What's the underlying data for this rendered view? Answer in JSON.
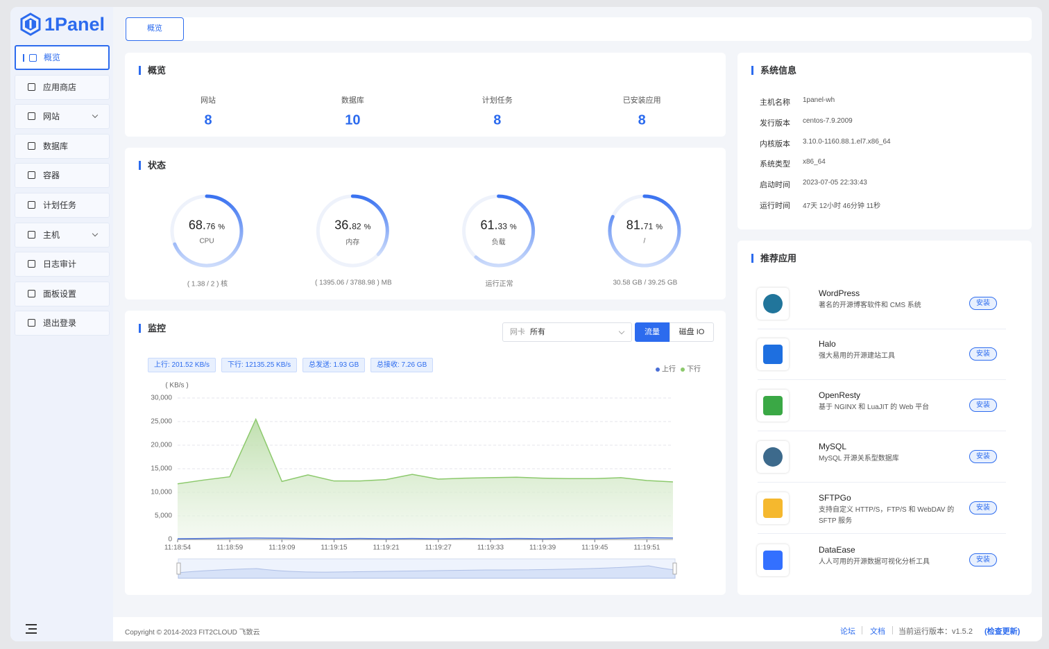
{
  "brand": "1Panel",
  "menu": [
    {
      "label": "概览",
      "active": true
    },
    {
      "label": "应用商店"
    },
    {
      "label": "网站",
      "submenu": true
    },
    {
      "label": "数据库"
    },
    {
      "label": "容器"
    },
    {
      "label": "计划任务"
    },
    {
      "label": "主机",
      "submenu": true
    },
    {
      "label": "日志审计"
    },
    {
      "label": "面板设置"
    },
    {
      "label": "退出登录"
    }
  ],
  "tab": "概览",
  "overview": {
    "title": "概览",
    "items": [
      {
        "label": "网站",
        "value": 8
      },
      {
        "label": "数据库",
        "value": 10
      },
      {
        "label": "计划任务",
        "value": 8
      },
      {
        "label": "已安装应用",
        "value": 8
      }
    ]
  },
  "status": {
    "title": "状态",
    "gauges": [
      {
        "value": 68.76,
        "major": "68.",
        "minor": "76",
        "unit": "%",
        "name": "CPU",
        "detail": "( 1.38 / 2 ) 核"
      },
      {
        "value": 36.82,
        "major": "36.",
        "minor": "82",
        "unit": "%",
        "name": "内存",
        "detail": "( 1395.06 / 3788.98 ) MB"
      },
      {
        "value": 61.33,
        "major": "61.",
        "minor": "33",
        "unit": "%",
        "name": "负载",
        "detail": "运行正常"
      },
      {
        "value": 81.71,
        "major": "81.",
        "minor": "71",
        "unit": "%",
        "name": "/",
        "detail": "30.58 GB / 39.25 GB"
      }
    ]
  },
  "monitor": {
    "title": "监控",
    "nic_label": "网卡",
    "nic_value": "所有",
    "buttons": [
      "流量",
      "磁盘 IO"
    ],
    "stats": [
      "上行: 201.52 KB/s",
      "下行: 12135.25 KB/s",
      "总发送: 1.93 GB",
      "总接收: 7.26 GB"
    ],
    "chart": {
      "type": "line",
      "y_unit": "( KB/s )",
      "categories": [
        "11:18:54",
        null,
        "11:18:59",
        null,
        "11:19:09",
        null,
        "11:19:15",
        null,
        "11:19:21",
        null,
        "11:19:27",
        null,
        "11:19:33",
        null,
        "11:19:39",
        null,
        "11:19:45",
        null,
        "11:19:51",
        null
      ],
      "series": [
        {
          "name": "上行",
          "color": "#4a6fd6",
          "values": [
            150,
            200,
            250,
            300,
            250,
            200,
            150,
            200,
            150,
            200,
            150,
            200,
            150,
            200,
            150,
            200,
            200,
            250,
            350,
            300
          ]
        },
        {
          "name": "下行",
          "color": "#8cc96c",
          "values": [
            11800,
            12600,
            13300,
            25500,
            12300,
            13700,
            12400,
            12400,
            12700,
            13800,
            12800,
            13000,
            13100,
            13200,
            13000,
            12900,
            12900,
            13100,
            12500,
            12200
          ]
        }
      ],
      "ylim": [
        0,
        30000
      ],
      "yticks": [
        0,
        {
          "value": 5000,
          "label": "5,000"
        },
        {
          "value": 10000,
          "label": "10,000"
        },
        {
          "value": 15000,
          "label": "15,000"
        },
        {
          "value": 20000,
          "label": "20,000"
        },
        {
          "value": 25000,
          "label": "25,000"
        },
        {
          "value": 30000,
          "label": "30,000"
        }
      ],
      "grid": true,
      "legend": "top-right"
    }
  },
  "sysinfo": {
    "title": "系统信息",
    "rows": [
      {
        "label": "主机名称",
        "value": "1panel-wh"
      },
      {
        "label": "发行版本",
        "value": "centos-7.9.2009"
      },
      {
        "label": "内核版本",
        "value": "3.10.0-1160.88.1.el7.x86_64"
      },
      {
        "label": "系统类型",
        "value": "x86_64"
      },
      {
        "label": "启动时间",
        "value": "2023-07-05 22:33:43"
      },
      {
        "label": "运行时间",
        "value": "47天 12小时 46分钟 11秒"
      }
    ]
  },
  "recommend": {
    "title": "推荐应用",
    "install": "安装",
    "apps": [
      {
        "name": "WordPress",
        "desc": "著名的开源博客软件和 CMS 系统",
        "color": "#21759b"
      },
      {
        "name": "Halo",
        "desc": "强大易用的开源建站工具",
        "color": "#1e6fe0"
      },
      {
        "name": "OpenResty",
        "desc": "基于 NGINX 和 LuaJIT 的 Web 平台",
        "color": "#3aa845"
      },
      {
        "name": "MySQL",
        "desc": "MySQL 开源关系型数据库",
        "color": "#3d6a8c"
      },
      {
        "name": "SFTPGo",
        "desc": "支持自定义 HTTP/S，FTP/S 和 WebDAV 的 SFTP 服务",
        "color": "#f5b82e"
      },
      {
        "name": "DataEase",
        "desc": "人人可用的开源数据可视化分析工具",
        "color": "#3370ff"
      }
    ]
  },
  "footer": {
    "copyright": "Copyright © 2014-2023 FIT2CLOUD 飞致云",
    "forum": "论坛",
    "docs": "文档",
    "version": "当前运行版本：v1.5.2",
    "update": "(检查更新)"
  }
}
